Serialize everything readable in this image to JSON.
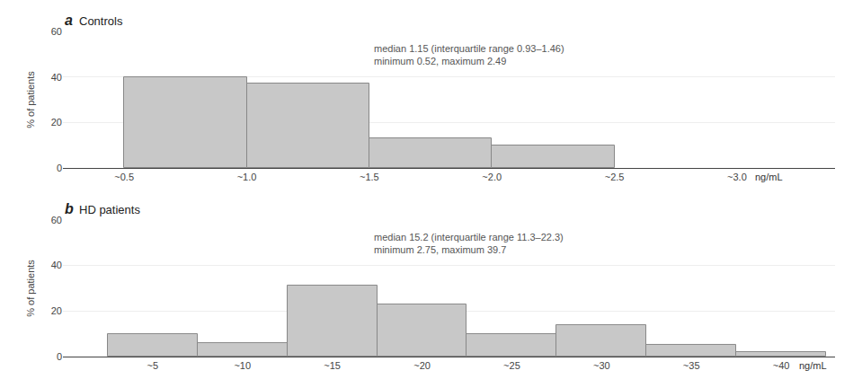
{
  "chart_data": [
    {
      "type": "histogram",
      "panel_label": "a",
      "title": "Controls",
      "bins": [
        0.5,
        1.0,
        1.5,
        2.0,
        2.5
      ],
      "values": [
        40,
        37,
        13,
        10
      ],
      "color": "#c8c8c8",
      "xlabel": "ng/mL",
      "ylabel": "% of patients",
      "xlim": [
        0.25,
        3.4
      ],
      "xticks": [
        {
          "value": 0.5,
          "label": "~0.5"
        },
        {
          "value": 1.0,
          "label": "~1.0"
        },
        {
          "value": 1.5,
          "label": "~1.5"
        },
        {
          "value": 2.0,
          "label": "~2.0"
        },
        {
          "value": 2.5,
          "label": "~2.5"
        },
        {
          "value": 3.0,
          "label": "~3.0"
        }
      ],
      "ylim": [
        0,
        60
      ],
      "yticks": [
        0,
        20,
        40,
        60
      ],
      "grid": true,
      "annotations": [
        "median 1.15 (interquartile range 0.93–1.46)",
        "minimum 0.52, maximum 2.49"
      ]
    },
    {
      "type": "histogram",
      "panel_label": "b",
      "title": "HD patients",
      "bins": [
        2.5,
        7.5,
        12.5,
        17.5,
        22.5,
        27.5,
        32.5,
        37.5,
        42.5
      ],
      "values": [
        10,
        6,
        31,
        23,
        10,
        14,
        5,
        2
      ],
      "color": "#c8c8c8",
      "xlabel": "ng/mL",
      "ylabel": "% of patients",
      "xlim": [
        0.0,
        43.0
      ],
      "xticks": [
        {
          "value": 5,
          "label": "~5"
        },
        {
          "value": 10,
          "label": "~10"
        },
        {
          "value": 15,
          "label": "~15"
        },
        {
          "value": 20,
          "label": "~20"
        },
        {
          "value": 25,
          "label": "~25"
        },
        {
          "value": 30,
          "label": "~30"
        },
        {
          "value": 35,
          "label": "~35"
        },
        {
          "value": 40,
          "label": "~40"
        }
      ],
      "ylim": [
        0,
        60
      ],
      "yticks": [
        0,
        20,
        40,
        60
      ],
      "grid": true,
      "annotations": [
        "median 15.2 (interquartile range 11.3–22.3)",
        "minimum 2.75, maximum 39.7"
      ]
    }
  ]
}
